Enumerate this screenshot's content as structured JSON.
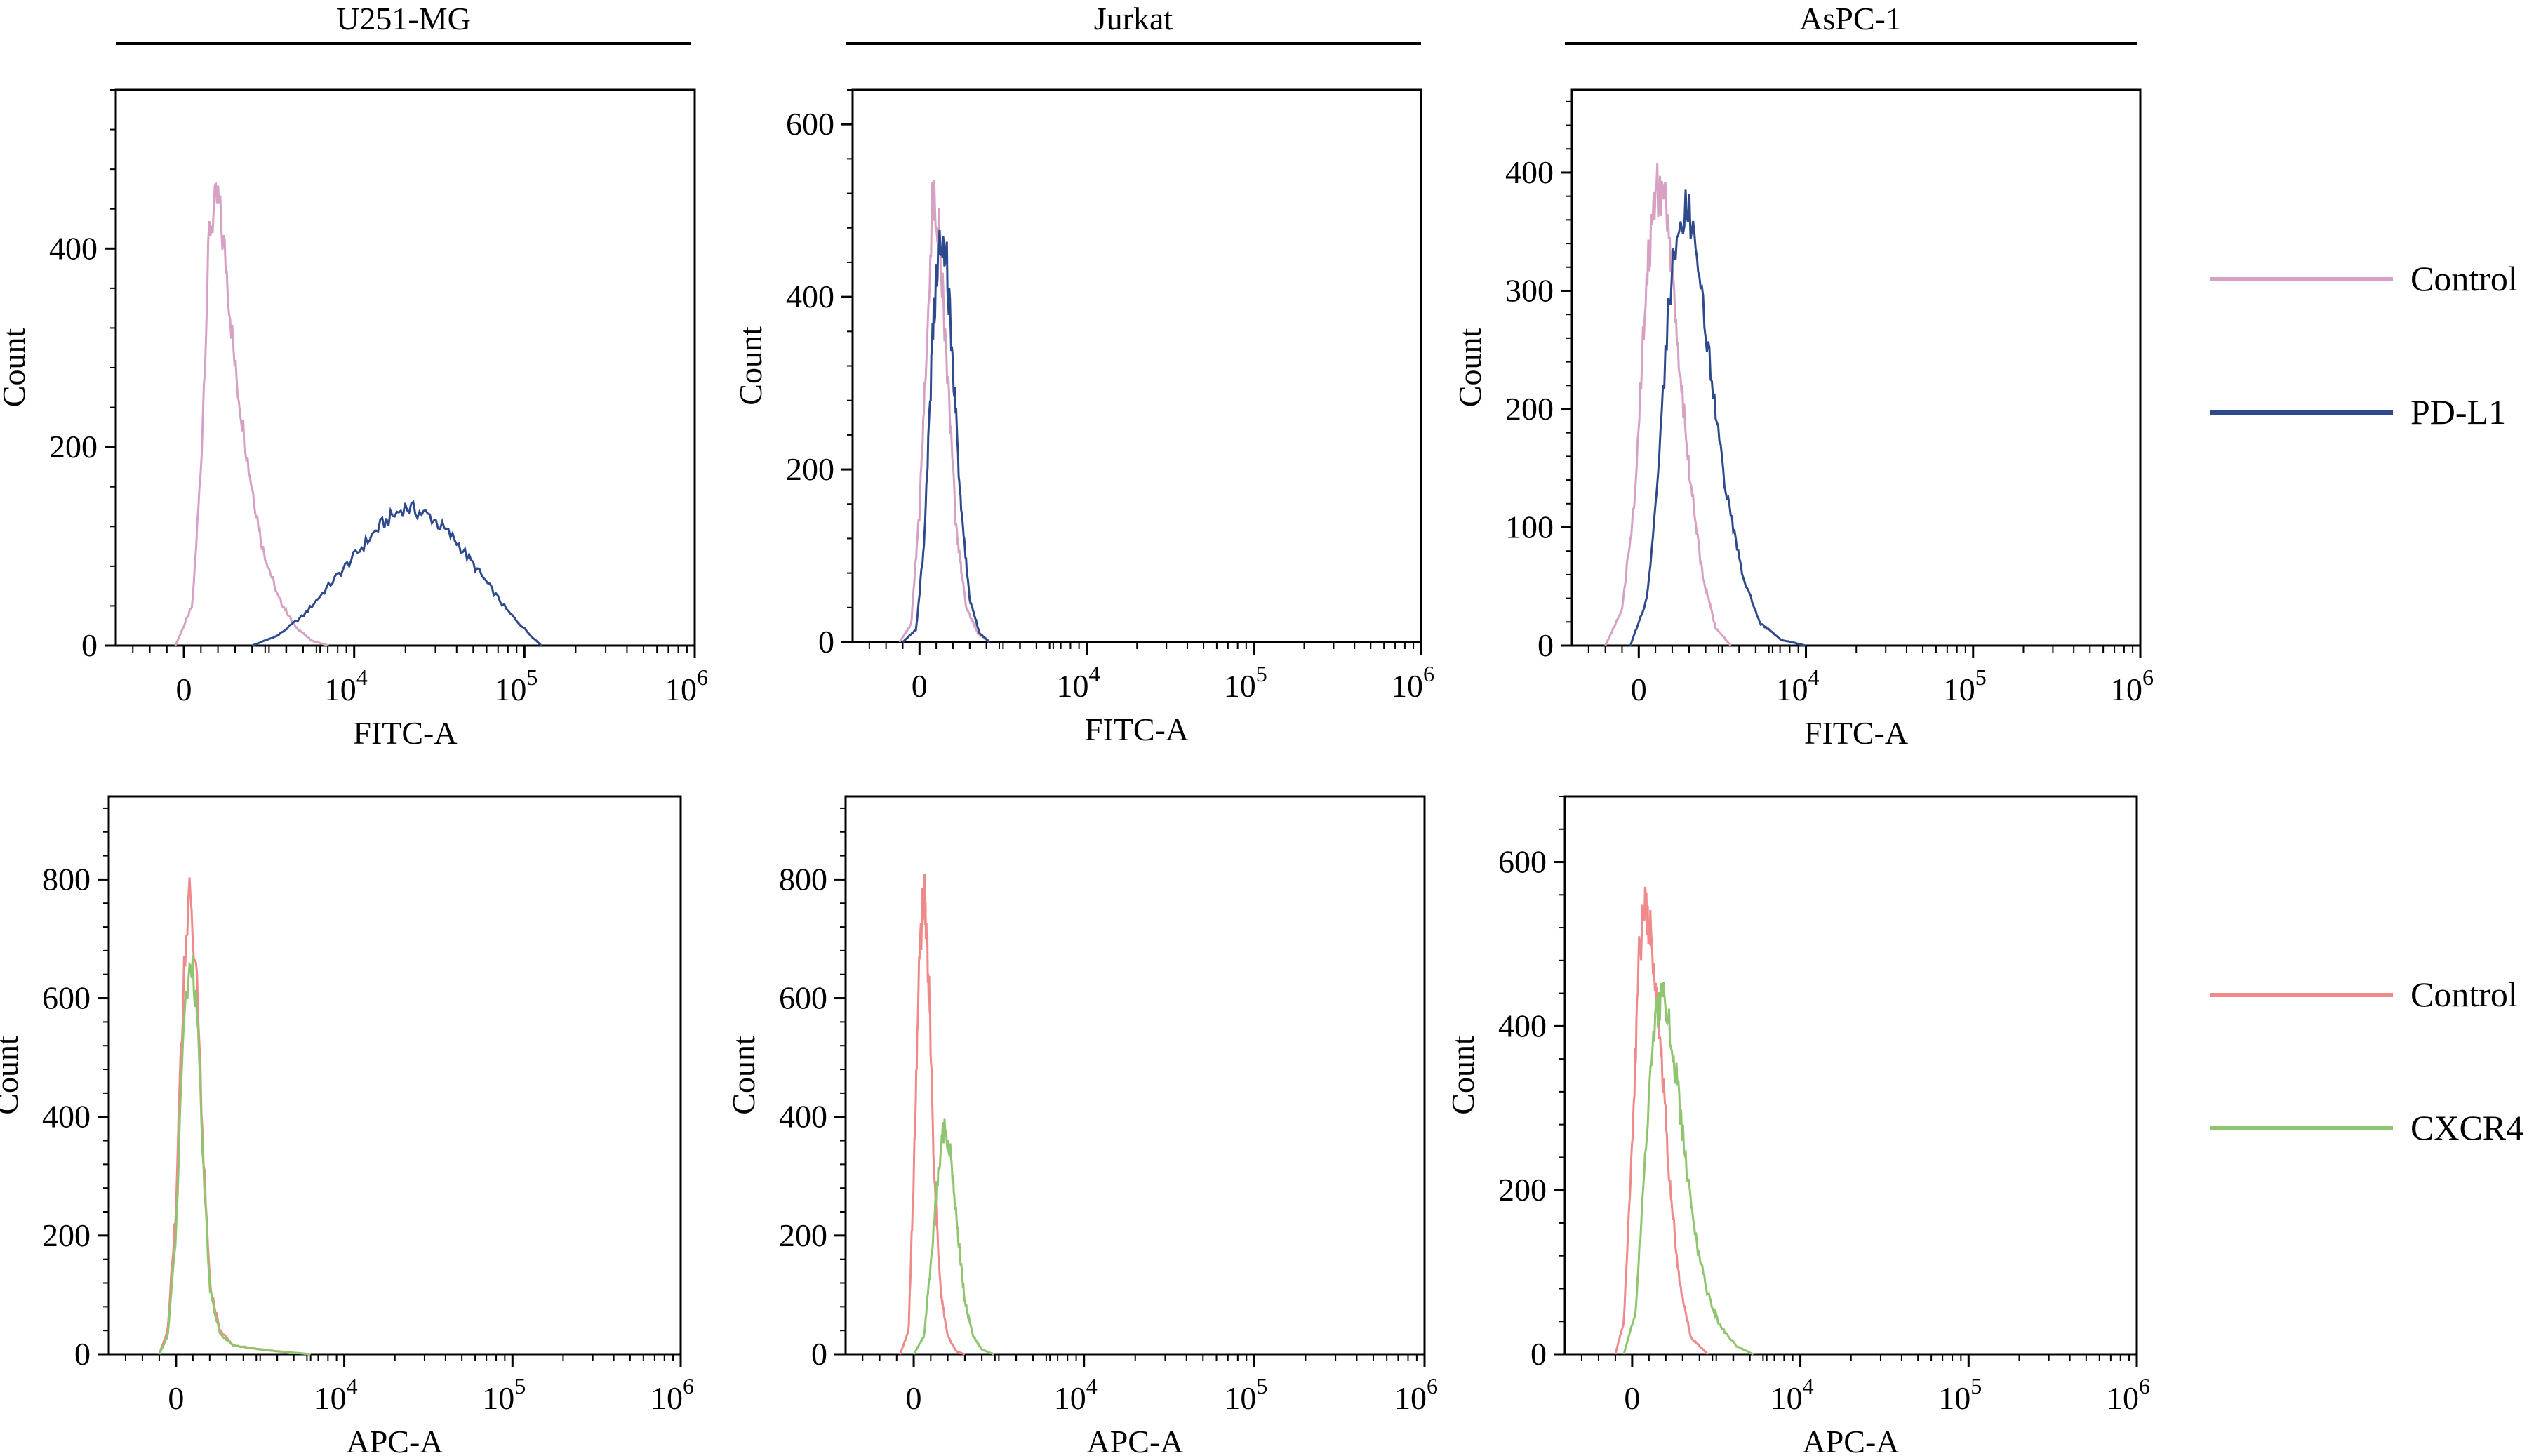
{
  "figure": {
    "column_headers": [
      "U251-MG",
      "Jurkat",
      "AsPC-1"
    ],
    "legend_top": [
      {
        "label": "Control",
        "color": "#d7a1c3"
      },
      {
        "label": "PD-L1",
        "color": "#2e4a8c"
      }
    ],
    "legend_bottom": [
      {
        "label": "Control",
        "color": "#f08a8a"
      },
      {
        "label": "CXCR4",
        "color": "#8fc56e"
      }
    ]
  },
  "chart_data": [
    {
      "type": "line",
      "panel": "U251-MG / PD-L1",
      "xlabel": "FITC-A",
      "ylabel": "Count",
      "x_ticks": [
        "0",
        "10^4",
        "10^5",
        "10^6"
      ],
      "y_ticks": [
        0,
        200,
        400
      ],
      "ylim": [
        0,
        560
      ],
      "series": [
        {
          "name": "Control",
          "color": "#d7a1c3",
          "x": [
            -0.05,
            0.05,
            0.1,
            0.15,
            0.2,
            0.25,
            0.3,
            0.38,
            0.46,
            0.55,
            0.65,
            0.75,
            0.85
          ],
          "y": [
            0,
            40,
            180,
            420,
            450,
            380,
            280,
            180,
            100,
            50,
            20,
            5,
            0
          ]
        },
        {
          "name": "PD-L1",
          "color": "#2e4a8c",
          "x": [
            0.4,
            0.55,
            0.7,
            0.85,
            1.0,
            1.15,
            1.3,
            1.45,
            1.6,
            1.75,
            1.9,
            2.05,
            2.1
          ],
          "y": [
            0,
            10,
            30,
            60,
            90,
            120,
            140,
            130,
            105,
            70,
            35,
            8,
            0
          ]
        }
      ]
    },
    {
      "type": "line",
      "panel": "Jurkat / PD-L1",
      "xlabel": "FITC-A",
      "ylabel": "Count",
      "x_ticks": [
        "0",
        "10^4",
        "10^5",
        "10^6"
      ],
      "y_ticks": [
        0,
        200,
        400,
        600
      ],
      "ylim": [
        0,
        640
      ],
      "series": [
        {
          "name": "Control",
          "color": "#d7a1c3",
          "x": [
            -0.12,
            -0.05,
            0.0,
            0.05,
            0.08,
            0.12,
            0.17,
            0.22,
            0.28,
            0.35,
            0.42
          ],
          "y": [
            0,
            20,
            150,
            380,
            520,
            470,
            300,
            130,
            40,
            10,
            0
          ]
        },
        {
          "name": "PD-L1",
          "color": "#2e4a8c",
          "x": [
            -0.1,
            -0.02,
            0.03,
            0.08,
            0.12,
            0.16,
            0.2,
            0.25,
            0.3,
            0.36,
            0.42
          ],
          "y": [
            0,
            15,
            120,
            360,
            480,
            450,
            320,
            150,
            50,
            10,
            0
          ]
        }
      ]
    },
    {
      "type": "line",
      "panel": "AsPC-1 / PD-L1",
      "xlabel": "FITC-A",
      "ylabel": "Count",
      "x_ticks": [
        "0",
        "10^4",
        "10^5",
        "10^6"
      ],
      "y_ticks": [
        0,
        100,
        200,
        300,
        400
      ],
      "ylim": [
        0,
        470
      ],
      "series": [
        {
          "name": "Control",
          "color": "#d7a1c3",
          "x": [
            -0.2,
            -0.1,
            -0.02,
            0.04,
            0.1,
            0.16,
            0.22,
            0.3,
            0.38,
            0.46,
            0.55
          ],
          "y": [
            0,
            30,
            130,
            300,
            390,
            370,
            280,
            150,
            60,
            15,
            0
          ]
        },
        {
          "name": "PD-L1",
          "color": "#2e4a8c",
          "x": [
            -0.05,
            0.05,
            0.12,
            0.18,
            0.24,
            0.3,
            0.36,
            0.44,
            0.52,
            0.62,
            0.72,
            0.85,
            1.0
          ],
          "y": [
            0,
            40,
            150,
            290,
            360,
            370,
            320,
            220,
            130,
            60,
            20,
            5,
            0
          ]
        }
      ]
    },
    {
      "type": "line",
      "panel": "U251-MG / CXCR4",
      "xlabel": "APC-A",
      "ylabel": "Count",
      "x_ticks": [
        "0",
        "10^4",
        "10^5",
        "10^6"
      ],
      "y_ticks": [
        0,
        200,
        400,
        600,
        800
      ],
      "ylim": [
        0,
        940
      ],
      "series": [
        {
          "name": "Control",
          "color": "#f08a8a",
          "x": [
            -0.1,
            -0.05,
            0.0,
            0.04,
            0.08,
            0.12,
            0.16,
            0.2,
            0.26,
            0.34,
            0.45,
            0.6,
            0.8
          ],
          "y": [
            0,
            40,
            250,
            600,
            780,
            650,
            350,
            120,
            40,
            15,
            10,
            5,
            0
          ]
        },
        {
          "name": "CXCR4",
          "color": "#8fc56e",
          "x": [
            -0.1,
            -0.05,
            0.0,
            0.04,
            0.08,
            0.12,
            0.16,
            0.2,
            0.26,
            0.34,
            0.45,
            0.6,
            0.8
          ],
          "y": [
            0,
            30,
            200,
            520,
            690,
            600,
            330,
            110,
            35,
            15,
            10,
            5,
            0
          ]
        }
      ]
    },
    {
      "type": "line",
      "panel": "Jurkat / CXCR4",
      "xlabel": "APC-A",
      "ylabel": "Count",
      "x_ticks": [
        "0",
        "10^4",
        "10^5",
        "10^6"
      ],
      "y_ticks": [
        0,
        200,
        400,
        600,
        800
      ],
      "ylim": [
        0,
        940
      ],
      "series": [
        {
          "name": "Control",
          "color": "#f08a8a",
          "x": [
            -0.08,
            -0.03,
            0.0,
            0.03,
            0.06,
            0.09,
            0.12,
            0.16,
            0.2,
            0.25,
            0.3
          ],
          "y": [
            0,
            40,
            300,
            650,
            790,
            620,
            300,
            100,
            30,
            5,
            0
          ]
        },
        {
          "name": "CXCR4",
          "color": "#8fc56e",
          "x": [
            0.0,
            0.06,
            0.1,
            0.14,
            0.18,
            0.22,
            0.26,
            0.3,
            0.35,
            0.4,
            0.47
          ],
          "y": [
            0,
            30,
            150,
            300,
            390,
            330,
            200,
            90,
            30,
            8,
            0
          ]
        }
      ]
    },
    {
      "type": "line",
      "panel": "AsPC-1 / CXCR4",
      "xlabel": "APC-A",
      "ylabel": "Count",
      "x_ticks": [
        "0",
        "10^4",
        "10^5",
        "10^6"
      ],
      "y_ticks": [
        0,
        200,
        400,
        600
      ],
      "ylim": [
        0,
        680
      ],
      "series": [
        {
          "name": "Control",
          "color": "#f08a8a",
          "x": [
            -0.1,
            -0.05,
            0.0,
            0.04,
            0.08,
            0.12,
            0.17,
            0.22,
            0.28,
            0.35,
            0.45
          ],
          "y": [
            0,
            40,
            250,
            480,
            550,
            500,
            380,
            220,
            90,
            20,
            0
          ]
        },
        {
          "name": "CXCR4",
          "color": "#8fc56e",
          "x": [
            -0.05,
            0.02,
            0.08,
            0.13,
            0.18,
            0.24,
            0.3,
            0.36,
            0.44,
            0.52,
            0.62,
            0.72
          ],
          "y": [
            0,
            50,
            250,
            400,
            440,
            380,
            270,
            160,
            80,
            35,
            10,
            0
          ]
        }
      ]
    }
  ]
}
